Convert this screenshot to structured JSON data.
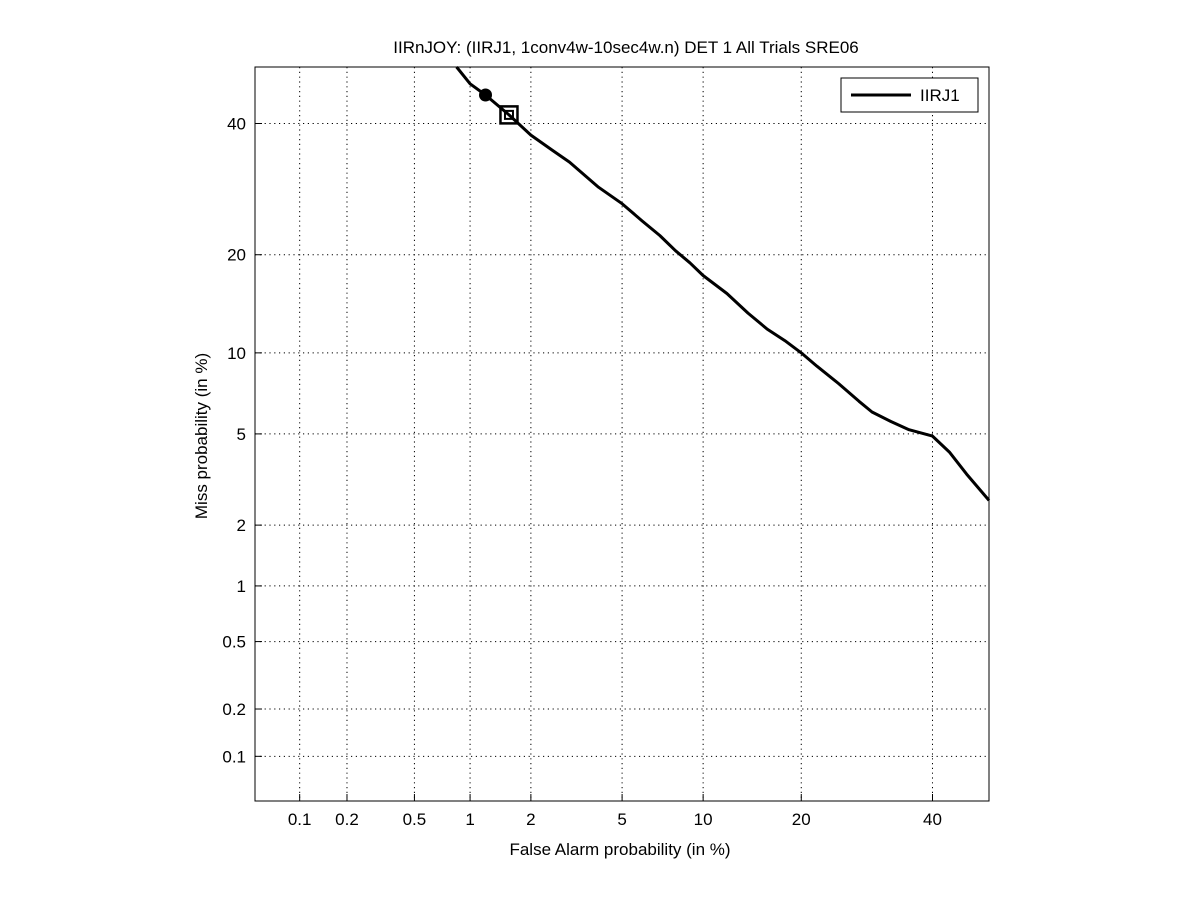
{
  "chart_data": {
    "type": "line",
    "title": "IIRnJOY: (IIRJ1, 1conv4w-10sec4w.n) DET 1 All Trials SRE06",
    "xlabel": "False Alarm probability (in %)",
    "ylabel": "Miss probability (in %)",
    "x_scale": "normal-deviate (probit)",
    "y_scale": "normal-deviate (probit)",
    "xlim": [
      0.05,
      50
    ],
    "ylim": [
      0.05,
      50
    ],
    "x_ticks": [
      "0.1",
      "0.2",
      "0.5",
      "1",
      "2",
      "5",
      "10",
      "20",
      "40"
    ],
    "y_ticks": [
      "0.1",
      "0.2",
      "0.5",
      "1",
      "2",
      "5",
      "10",
      "20",
      "40"
    ],
    "grid": true,
    "legend_position": "top-right",
    "series": [
      {
        "name": "IIRJ1",
        "color": "#000000",
        "x": [
          0.85,
          1.0,
          1.2,
          1.57,
          2.0,
          2.5,
          3.0,
          4.0,
          5.0,
          6.0,
          7.0,
          8.0,
          9.0,
          10.0,
          12.0,
          14.0,
          16.0,
          18.0,
          20.0,
          22.0,
          25.0,
          28.0,
          30.0,
          33.0,
          36.0,
          40.0,
          43.0,
          46.0,
          50.0
        ],
        "y": [
          50.0,
          47.0,
          45.0,
          41.5,
          38.0,
          35.5,
          33.5,
          29.5,
          27.0,
          24.5,
          22.5,
          20.5,
          19.0,
          17.5,
          15.5,
          13.5,
          12.0,
          11.0,
          10.0,
          9.0,
          7.8,
          6.7,
          6.1,
          5.6,
          5.2,
          4.9,
          4.2,
          3.4,
          2.6
        ]
      }
    ],
    "markers": [
      {
        "shape": "circle",
        "x": 1.2,
        "y": 45.0
      },
      {
        "shape": "square",
        "x": 1.57,
        "y": 41.5
      }
    ]
  }
}
